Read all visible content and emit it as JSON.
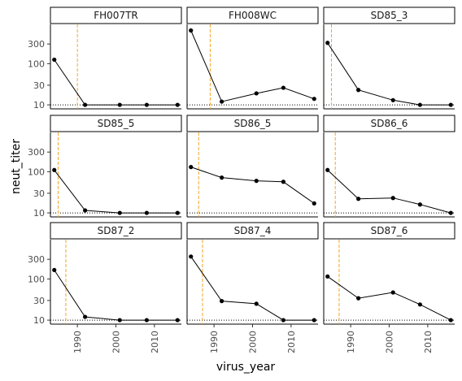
{
  "chart_data": {
    "type": "line",
    "facet_type": "facet_wrap",
    "xlabel": "virus_year",
    "ylabel": "neut_titer",
    "y_scale": "log10",
    "xlim": [
      1983,
      2017
    ],
    "ylim": [
      8,
      900
    ],
    "x_ticks": [
      1990,
      2000,
      2010
    ],
    "x_tick_labels": [
      "1990",
      "2000",
      "2010"
    ],
    "y_ticks": [
      10,
      30,
      100,
      300
    ],
    "y_tick_labels": [
      "10",
      "30",
      "100",
      "300"
    ],
    "x": [
      1984,
      1992,
      2001,
      2008,
      2016
    ],
    "detection_limit": 10,
    "colors": {
      "line": "#000000",
      "point": "#000000",
      "birth_year_line": "#f5a623",
      "panel_border": "#000000",
      "strip_fill": "#ffffff"
    },
    "panels": [
      {
        "name": "FH007TR",
        "birth_year": 1990,
        "values": [
          125,
          10,
          10,
          10,
          10
        ]
      },
      {
        "name": "FH008WC",
        "birth_year": 1989,
        "values": [
          640,
          12,
          19,
          26,
          14
        ]
      },
      {
        "name": "SD85_3",
        "birth_year": 1985,
        "values": [
          320,
          23,
          13,
          10,
          10
        ]
      },
      {
        "name": "SD85_5",
        "birth_year": 1985,
        "values": [
          110,
          11.5,
          10,
          10,
          10
        ]
      },
      {
        "name": "SD86_5",
        "birth_year": 1986,
        "values": [
          130,
          72,
          60,
          57,
          17
        ]
      },
      {
        "name": "SD86_6",
        "birth_year": 1986,
        "values": [
          110,
          22,
          23,
          16,
          10
        ]
      },
      {
        "name": "SD87_2",
        "birth_year": 1987,
        "values": [
          165,
          12,
          10,
          10,
          10
        ]
      },
      {
        "name": "SD87_4",
        "birth_year": 1987,
        "values": [
          350,
          29,
          25,
          10,
          10
        ]
      },
      {
        "name": "SD87_6",
        "birth_year": 1987,
        "values": [
          115,
          34,
          47,
          24,
          10
        ]
      }
    ]
  }
}
